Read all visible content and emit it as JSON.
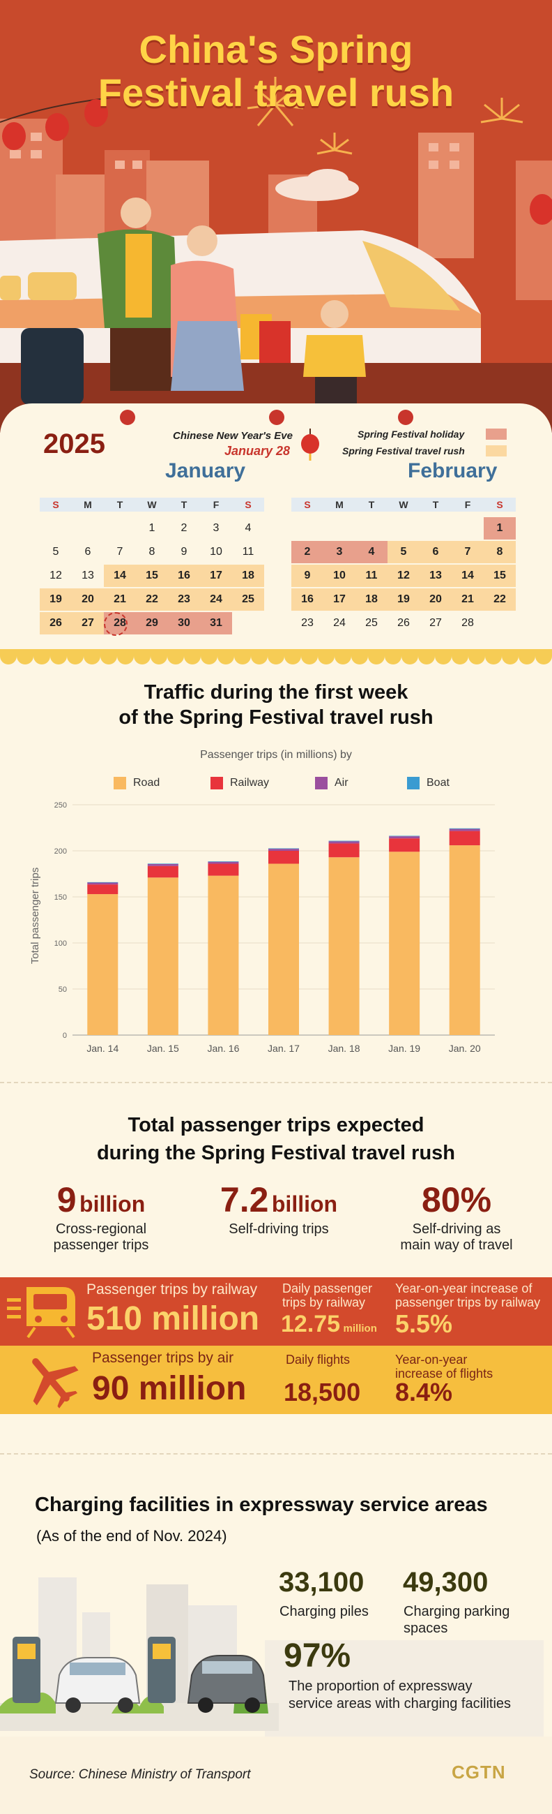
{
  "title": "China's Spring Festival travel rush",
  "calendar": {
    "year": "2025",
    "months": [
      "January",
      "February"
    ],
    "weekdays": [
      "S",
      "M",
      "T",
      "W",
      "T",
      "F",
      "S"
    ],
    "new_years_eve_label": "Chinese New Year's Eve",
    "new_years_eve_date": "January 28",
    "legend_holiday": "Spring Festival holiday",
    "legend_travel": "Spring Festival travel rush",
    "colors": {
      "holiday": "#e8a08c",
      "travel": "#fbd8a0"
    }
  },
  "chart_title": "Traffic during the first week of the Spring Festival travel rush",
  "chart_title_lines": [
    "Traffic during the first week",
    "of the Spring Festival travel rush"
  ],
  "chart_subtitle": "Passenger trips (in millions) by",
  "chart_data": {
    "type": "bar",
    "stacked": true,
    "categories": [
      "Jan. 14",
      "Jan. 15",
      "Jan. 16",
      "Jan. 17",
      "Jan. 18",
      "Jan. 19",
      "Jan. 20"
    ],
    "series": [
      {
        "name": "Road",
        "color": "#f9b960",
        "values": [
          153,
          171,
          173,
          186,
          193,
          199,
          206
        ]
      },
      {
        "name": "Railway",
        "color": "#e8343c",
        "values": [
          10.5,
          12.5,
          13,
          14,
          15,
          14.5,
          15.5
        ]
      },
      {
        "name": "Air",
        "color": "#9b4f9e",
        "values": [
          2.0,
          2.1,
          2.1,
          2.2,
          2.3,
          2.3,
          2.3
        ]
      },
      {
        "name": "Boat",
        "color": "#3a9bd1",
        "values": [
          0.5,
          0.5,
          0.5,
          0.5,
          0.6,
          0.5,
          0.6
        ]
      }
    ],
    "ylabel": "Total passenger trips",
    "xlabel": "",
    "ylim": [
      0,
      250
    ],
    "yticks": [
      0,
      50,
      100,
      150,
      200,
      250
    ],
    "grid": true,
    "legend": "top"
  },
  "expected": {
    "title_lines": [
      "Total passenger trips expected",
      "during the Spring Festival travel rush"
    ],
    "stats": [
      {
        "value": "9",
        "unit": "billion",
        "label_lines": [
          "Cross-regional",
          "passenger trips"
        ]
      },
      {
        "value": "7.2",
        "unit": "billion",
        "label_lines": [
          "Self-driving trips"
        ]
      },
      {
        "value": "80%",
        "unit": "",
        "label_lines": [
          "Self-driving as",
          "main way of travel"
        ]
      }
    ],
    "railway": {
      "label": "Passenger trips by railway",
      "value": "510 million",
      "daily_label_lines": [
        "Daily passenger",
        "trips by railway"
      ],
      "daily_value": "12.75",
      "daily_unit": "million",
      "yoy_label_lines": [
        "Year-on-year increase of",
        "passenger trips by railway"
      ],
      "yoy_value": "5.5%"
    },
    "air": {
      "label": "Passenger trips by air",
      "value": "90 million",
      "daily_label": "Daily flights",
      "daily_value": "18,500",
      "yoy_label_lines": [
        "Year-on-year",
        "increase of flights"
      ],
      "yoy_value": "8.4%"
    }
  },
  "charging": {
    "title": "Charging facilities in expressway service areas",
    "subtitle": "(As of the end of Nov. 2024)",
    "piles_value": "33,100",
    "piles_label": "Charging piles",
    "spaces_value": "49,300",
    "spaces_label_lines": [
      "Charging parking",
      "spaces"
    ],
    "pct_value": "97%",
    "pct_label_lines": [
      "The proportion of expressway",
      "service areas with charging facilities"
    ]
  },
  "footer": {
    "source": "Source: Chinese Ministry of Transport",
    "logo": "CGTN"
  }
}
